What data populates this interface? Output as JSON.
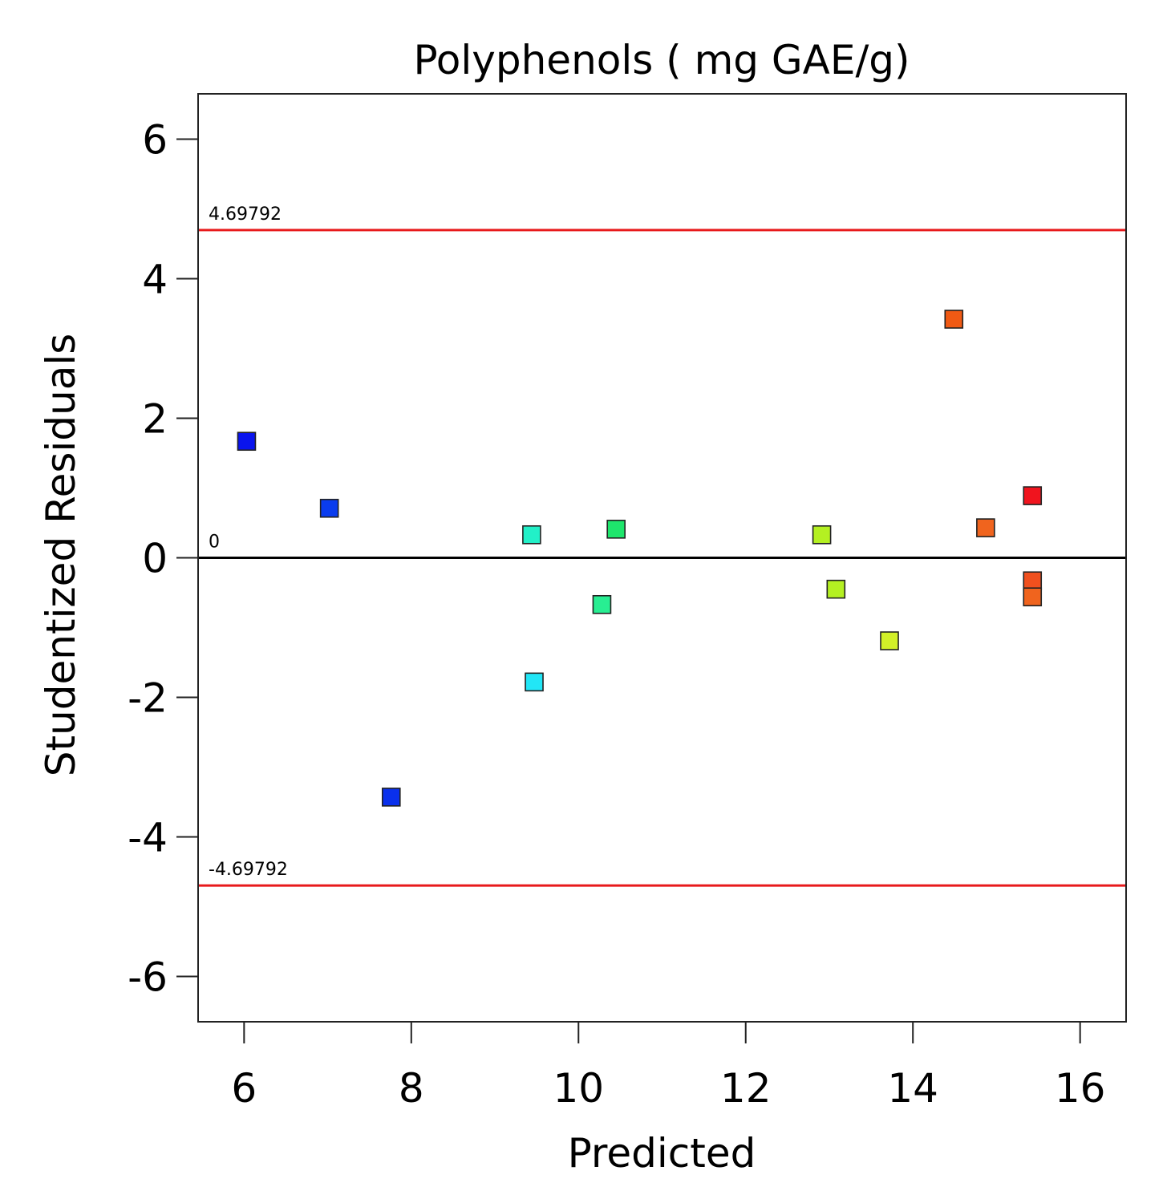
{
  "chart_data": {
    "type": "scatter",
    "title": "Polyphenols ( mg GAE/g)",
    "xlabel": "Predicted",
    "ylabel": "Studentized Residuals",
    "xlim": [
      5.45,
      16.55
    ],
    "ylim": [
      -6.65,
      6.65
    ],
    "xticks": [
      6,
      8,
      10,
      12,
      14,
      16
    ],
    "yticks": [
      -6,
      -4,
      -2,
      0,
      2,
      4,
      6
    ],
    "xtick_labels": [
      "6",
      "8",
      "10",
      "12",
      "14",
      "16"
    ],
    "ytick_labels": [
      "-6",
      "-4",
      "-2",
      "0",
      "2",
      "4",
      "6"
    ],
    "reference_lines": [
      {
        "value": 4.69792,
        "label": "4.69792",
        "color": "#e8191b"
      },
      {
        "value": 0,
        "label": "0",
        "color": "#000000"
      },
      {
        "value": -4.69792,
        "label": "-4.69792",
        "color": "#e8191b"
      }
    ],
    "points": [
      {
        "x": 6.03,
        "y": 1.67,
        "color": "#0a14ee"
      },
      {
        "x": 7.02,
        "y": 0.71,
        "color": "#0a3cee"
      },
      {
        "x": 7.76,
        "y": -3.43,
        "color": "#0a30ec"
      },
      {
        "x": 9.44,
        "y": 0.33,
        "color": "#22f0c8"
      },
      {
        "x": 9.47,
        "y": -1.78,
        "color": "#22e6f6"
      },
      {
        "x": 10.28,
        "y": -0.67,
        "color": "#28ee92"
      },
      {
        "x": 10.45,
        "y": 0.41,
        "color": "#1ee66c"
      },
      {
        "x": 12.91,
        "y": 0.33,
        "color": "#b4f022"
      },
      {
        "x": 13.08,
        "y": -0.45,
        "color": "#b4f022"
      },
      {
        "x": 13.72,
        "y": -1.19,
        "color": "#d2f028"
      },
      {
        "x": 14.49,
        "y": 3.42,
        "color": "#f05a14"
      },
      {
        "x": 14.87,
        "y": 0.43,
        "color": "#f0641e"
      },
      {
        "x": 15.43,
        "y": 0.89,
        "color": "#f0141e"
      },
      {
        "x": 15.43,
        "y": -0.33,
        "color": "#f0501e"
      },
      {
        "x": 15.43,
        "y": -0.56,
        "color": "#f0641e"
      }
    ]
  }
}
